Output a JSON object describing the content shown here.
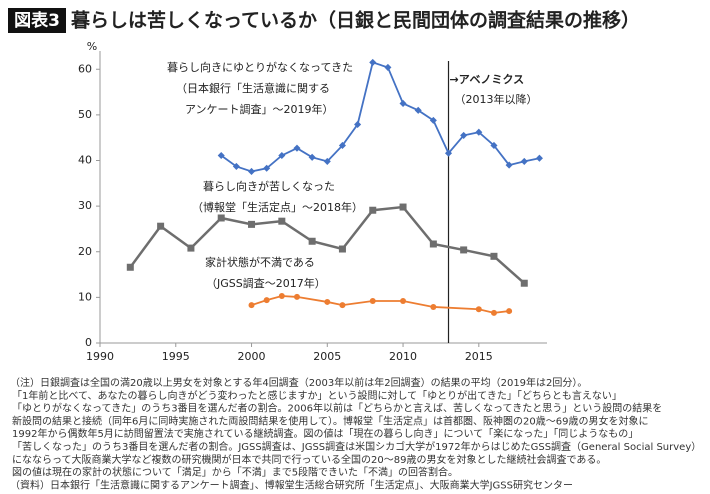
{
  "chart_data": {
    "type": "line",
    "badge": "図表3",
    "title": "暮らしは苦しくなっているか（日銀と民間団体の調査結果の推移）",
    "y_unit": "%",
    "xlim": [
      1990,
      2019.5
    ],
    "ylim": [
      0,
      64
    ],
    "xticks": [
      1990,
      1995,
      2000,
      2005,
      2010,
      2015
    ],
    "yticks": [
      0,
      10,
      20,
      30,
      40,
      50,
      60
    ],
    "grid": false,
    "series": [
      {
        "name": "暮らし向きにゆとりがなくなってきた",
        "label_lines": [
          "（日本銀行「生活意識に関する",
          "アンケート調査」～2019年）"
        ],
        "color": "#4472c4",
        "marker": "diamond",
        "x": [
          1998,
          1999,
          2000,
          2001,
          2002,
          2003,
          2004,
          2005,
          2006,
          2007,
          2008,
          2009,
          2010,
          2011,
          2012,
          2013,
          2014,
          2015,
          2016,
          2017,
          2018,
          2019
        ],
        "values": [
          41.1,
          38.7,
          37.6,
          38.3,
          41.1,
          42.7,
          40.7,
          39.8,
          43.3,
          47.9,
          61.5,
          60.4,
          52.5,
          51.0,
          48.8,
          41.6,
          45.5,
          46.2,
          43.3,
          39.0,
          39.8,
          40.5
        ]
      },
      {
        "name": "暮らし向きが苦しくなった",
        "label_lines": [
          "（博報堂「生活定点」～2018年）"
        ],
        "color": "#6e6e6e",
        "marker": "square",
        "x": [
          1992,
          1994,
          1996,
          1998,
          2000,
          2002,
          2004,
          2006,
          2008,
          2010,
          2012,
          2014,
          2016,
          2018
        ],
        "values": [
          16.6,
          25.6,
          20.8,
          27.4,
          26.0,
          26.7,
          22.3,
          20.6,
          29.1,
          29.8,
          21.7,
          20.4,
          19.0,
          13.1
        ]
      },
      {
        "name": "家計状態が不満である",
        "label_lines": [
          "（JGSS調査～2017年）"
        ],
        "color": "#ed7d31",
        "marker": "circle",
        "x": [
          2000,
          2001,
          2002,
          2003,
          2005,
          2006,
          2008,
          2010,
          2012,
          2015,
          2016,
          2017
        ],
        "values": [
          8.3,
          9.4,
          10.3,
          10.1,
          9.0,
          8.3,
          9.2,
          9.2,
          7.9,
          7.4,
          6.6,
          7.0
        ]
      }
    ],
    "vline": {
      "x": 2013,
      "label": "→アベノミクス",
      "sublabel": "（2013年以降）"
    },
    "notes": [
      "（注）日銀調査は全国の満20歳以上男女を対象とする年4回調査（2003年以前は年2回調査）の結果の平均（2019年は2回分）。",
      "「1年前と比べて、あなたの暮らし向きがどう変わったと感じますか」という設問に対して「ゆとりが出てきた」「どちらとも言えない」",
      "「ゆとりがなくなってきた」のうち3番目を選んだ者の割合。2006年以前は「どちらかと言えば、苦しくなってきたと思う」という設問の結果を",
      "新設問の結果と接続（同年6月に同時実施された両設問結果を使用して）。博報堂「生活定点」は首都圏、阪神圏の20歳～69歳の男女を対象に",
      "1992年から偶数年5月に訪問留置法で実施されている継続調査。図の値は「現在の暮らし向き」について「楽になった」「同じようなもの」",
      "「苦しくなった」のうち3番目を選んだ者の割合。JGSS調査は、JGSS調査は米国シカゴ大学が1972年からはじめたGSS調査（General Social Survey）",
      "になならって大阪商業大学など複数の研究機関が日本で共同で行っている全国の20～89歳の男女を対象とした継続社会調査である。",
      "図の値は現在の家計の状態について「満足」から「不満」まで5段階できいた「不満」の回答割合。",
      "（資料）日本銀行「生活意識に関するアンケート調査」、博報堂生活総合研究所「生活定点」、大阪商業大学JGSS研究センター"
    ]
  }
}
